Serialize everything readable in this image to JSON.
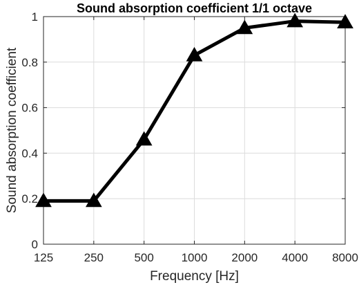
{
  "chart_data": {
    "type": "line",
    "title": "Sound absorption coefficient 1/1 octave",
    "xlabel": "Frequency [Hz]",
    "ylabel": "Sound absorption coefficient",
    "categories": [
      "125",
      "250",
      "500",
      "1000",
      "2000",
      "4000",
      "8000"
    ],
    "series": [
      {
        "values": [
          0.19,
          0.19,
          0.46,
          0.83,
          0.95,
          0.98,
          0.975
        ],
        "marker": "triangle"
      }
    ],
    "ylim": [
      0,
      1
    ],
    "yticks": [
      0,
      0.2,
      0.4,
      0.6,
      0.8,
      1
    ],
    "ytick_labels": [
      "0",
      "0.2",
      "0.4",
      "0.6",
      "0.8",
      "1"
    ],
    "grid": true,
    "colors": {
      "line": "#000000",
      "grid": "#dcdcdc",
      "axis": "#262626"
    }
  }
}
